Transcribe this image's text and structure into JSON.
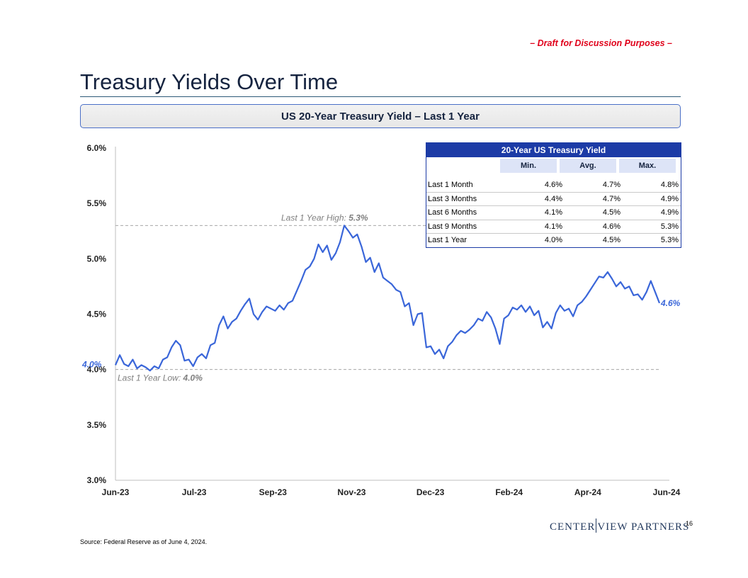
{
  "header": {
    "draft_label": "– Draft for Discussion Purposes –",
    "page_title": "Treasury Yields Over Time",
    "banner_title": "US 20-Year Treasury Yield – Last 1 Year"
  },
  "table": {
    "title": "20-Year US Treasury Yield",
    "columns": [
      "Min.",
      "Avg.",
      "Max."
    ],
    "rows": [
      {
        "label": "Last 1 Month",
        "min": "4.6%",
        "avg": "4.7%",
        "max": "4.8%"
      },
      {
        "label": "Last 3 Months",
        "min": "4.4%",
        "avg": "4.7%",
        "max": "4.9%"
      },
      {
        "label": "Last 6 Months",
        "min": "4.1%",
        "avg": "4.5%",
        "max": "4.9%"
      },
      {
        "label": "Last 9 Months",
        "min": "4.1%",
        "avg": "4.6%",
        "max": "5.3%"
      },
      {
        "label": "Last 1 Year",
        "min": "4.0%",
        "avg": "4.5%",
        "max": "5.3%"
      }
    ]
  },
  "chart_data": {
    "type": "line",
    "title": "US 20-Year Treasury Yield – Last 1 Year",
    "xlabel": "",
    "ylabel": "",
    "y_tick_labels": [
      "3.0%",
      "3.5%",
      "4.0%",
      "4.5%",
      "5.0%",
      "5.5%",
      "6.0%"
    ],
    "ylim": [
      3.0,
      6.0
    ],
    "x_tick_labels": [
      "Jun-23",
      "Jul-23",
      "Sep-23",
      "Nov-23",
      "Dec-23",
      "Feb-24",
      "Apr-24",
      "Jun-24"
    ],
    "series": [
      {
        "name": "20-Year US Treasury Yield",
        "color": "#3a66d9",
        "values": [
          4.04,
          4.13,
          4.05,
          4.03,
          4.09,
          4.01,
          4.04,
          4.02,
          3.99,
          4.03,
          4.01,
          4.09,
          4.11,
          4.2,
          4.26,
          4.22,
          4.08,
          4.09,
          4.03,
          4.11,
          4.14,
          4.1,
          4.22,
          4.24,
          4.4,
          4.48,
          4.37,
          4.43,
          4.46,
          4.53,
          4.59,
          4.64,
          4.5,
          4.45,
          4.52,
          4.57,
          4.55,
          4.53,
          4.58,
          4.54,
          4.6,
          4.62,
          4.71,
          4.8,
          4.9,
          4.93,
          5.0,
          5.13,
          5.06,
          5.12,
          4.99,
          5.05,
          5.15,
          5.3,
          5.25,
          5.19,
          5.22,
          5.11,
          4.97,
          5.01,
          4.88,
          4.96,
          4.83,
          4.8,
          4.77,
          4.72,
          4.7,
          4.57,
          4.6,
          4.4,
          4.5,
          4.51,
          4.2,
          4.21,
          4.14,
          4.18,
          4.1,
          4.21,
          4.25,
          4.31,
          4.35,
          4.33,
          4.36,
          4.4,
          4.46,
          4.44,
          4.52,
          4.47,
          4.37,
          4.23,
          4.46,
          4.49,
          4.56,
          4.54,
          4.58,
          4.52,
          4.57,
          4.49,
          4.53,
          4.38,
          4.43,
          4.37,
          4.51,
          4.58,
          4.53,
          4.55,
          4.48,
          4.58,
          4.61,
          4.66,
          4.72,
          4.78,
          4.84,
          4.83,
          4.88,
          4.82,
          4.75,
          4.79,
          4.73,
          4.75,
          4.67,
          4.68,
          4.63,
          4.7,
          4.8,
          4.7,
          4.6
        ]
      }
    ],
    "annotations": {
      "high_label": "Last 1 Year High:",
      "high_value_label": "5.3%",
      "high_value": 5.3,
      "low_label": "Last 1 Year Low:",
      "low_value_label": "4.0%",
      "low_value": 4.0,
      "start_label": "4.0%",
      "end_label": "4.6%"
    }
  },
  "footer": {
    "source": "Source:   Federal Reserve as of June 4, 2024.",
    "logo_left": "CENTER",
    "logo_right": "VIEW PARTNERS",
    "page_number": "16"
  }
}
